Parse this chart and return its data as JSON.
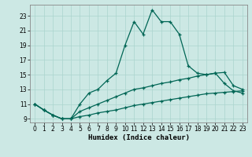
{
  "xlabel": "Humidex (Indice chaleur)",
  "background_color": "#cce8e4",
  "grid_color": "#aad4ce",
  "line_color": "#006655",
  "x": [
    0,
    1,
    2,
    3,
    4,
    5,
    6,
    7,
    8,
    9,
    10,
    11,
    12,
    13,
    14,
    15,
    16,
    17,
    18,
    19,
    20,
    21,
    22,
    23
  ],
  "line_main": [
    11.0,
    10.2,
    9.5,
    9.0,
    9.0,
    11.0,
    12.5,
    13.0,
    14.2,
    15.2,
    19.0,
    22.2,
    20.5,
    23.8,
    22.2,
    22.2,
    20.5,
    16.2,
    15.2,
    15.0,
    15.2,
    13.8,
    12.8,
    12.5
  ],
  "line_upper": [
    11.0,
    10.2,
    9.5,
    9.0,
    9.0,
    10.0,
    10.5,
    11.0,
    11.5,
    12.0,
    12.5,
    13.0,
    13.2,
    13.5,
    13.8,
    14.0,
    14.3,
    14.5,
    14.8,
    15.0,
    15.2,
    15.3,
    13.5,
    13.0
  ],
  "line_lower": [
    11.0,
    10.2,
    9.5,
    9.0,
    9.0,
    9.3,
    9.5,
    9.8,
    10.0,
    10.2,
    10.5,
    10.8,
    11.0,
    11.2,
    11.4,
    11.6,
    11.8,
    12.0,
    12.2,
    12.4,
    12.5,
    12.6,
    12.7,
    12.8
  ],
  "ylim": [
    8.5,
    24.5
  ],
  "xlim": [
    -0.5,
    23.5
  ],
  "yticks": [
    9,
    11,
    13,
    15,
    17,
    19,
    21,
    23
  ],
  "xticks": [
    0,
    1,
    2,
    3,
    4,
    5,
    6,
    7,
    8,
    9,
    10,
    11,
    12,
    13,
    14,
    15,
    16,
    17,
    18,
    19,
    20,
    21,
    22,
    23
  ],
  "tick_fontsize": 5.5,
  "xlabel_fontsize": 6.5
}
